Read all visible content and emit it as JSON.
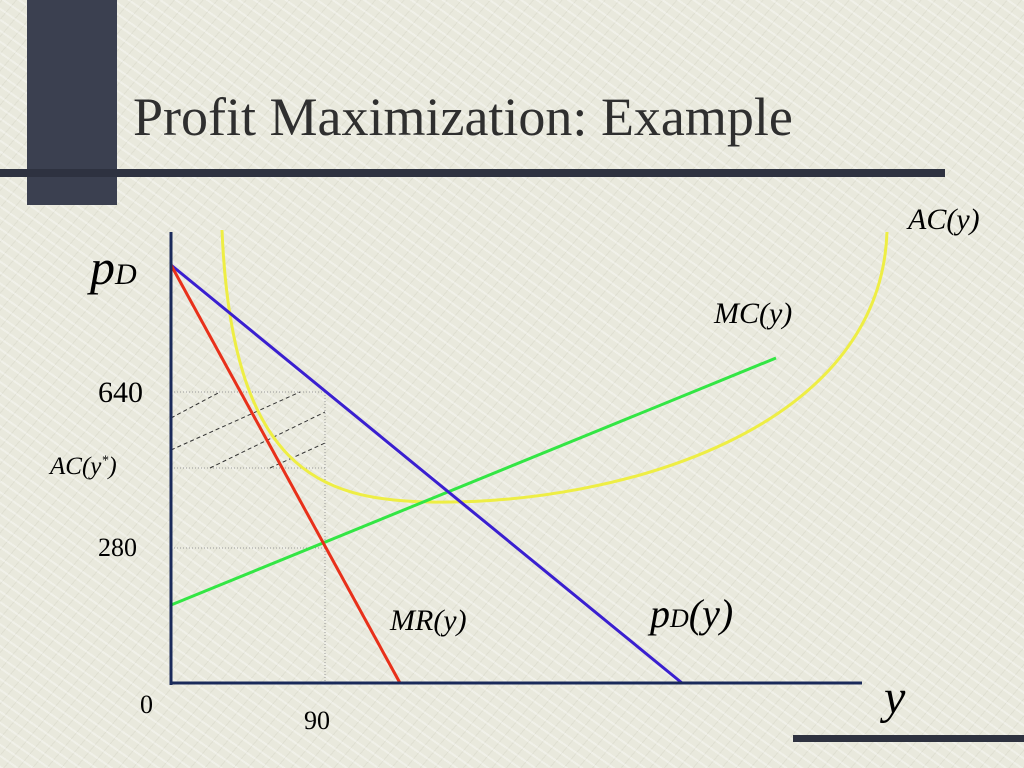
{
  "title": "Profit Maximization: Example",
  "axis": {
    "price_symbol": {
      "main": "p",
      "sub": "D"
    },
    "quantity_symbol": "y",
    "origin": "0"
  },
  "price_ticks": [
    "640",
    "280"
  ],
  "quantity_ticks": [
    "90"
  ],
  "ac_at_optimum": {
    "before": "AC(",
    "var": "y",
    "sup": "*",
    "after": ")"
  },
  "curves": {
    "ac": "AC(y)",
    "mc": "MC(y)",
    "mr": "MR(y)",
    "demand": {
      "main": "p",
      "sub": "D",
      "rest": "(y)"
    }
  }
}
